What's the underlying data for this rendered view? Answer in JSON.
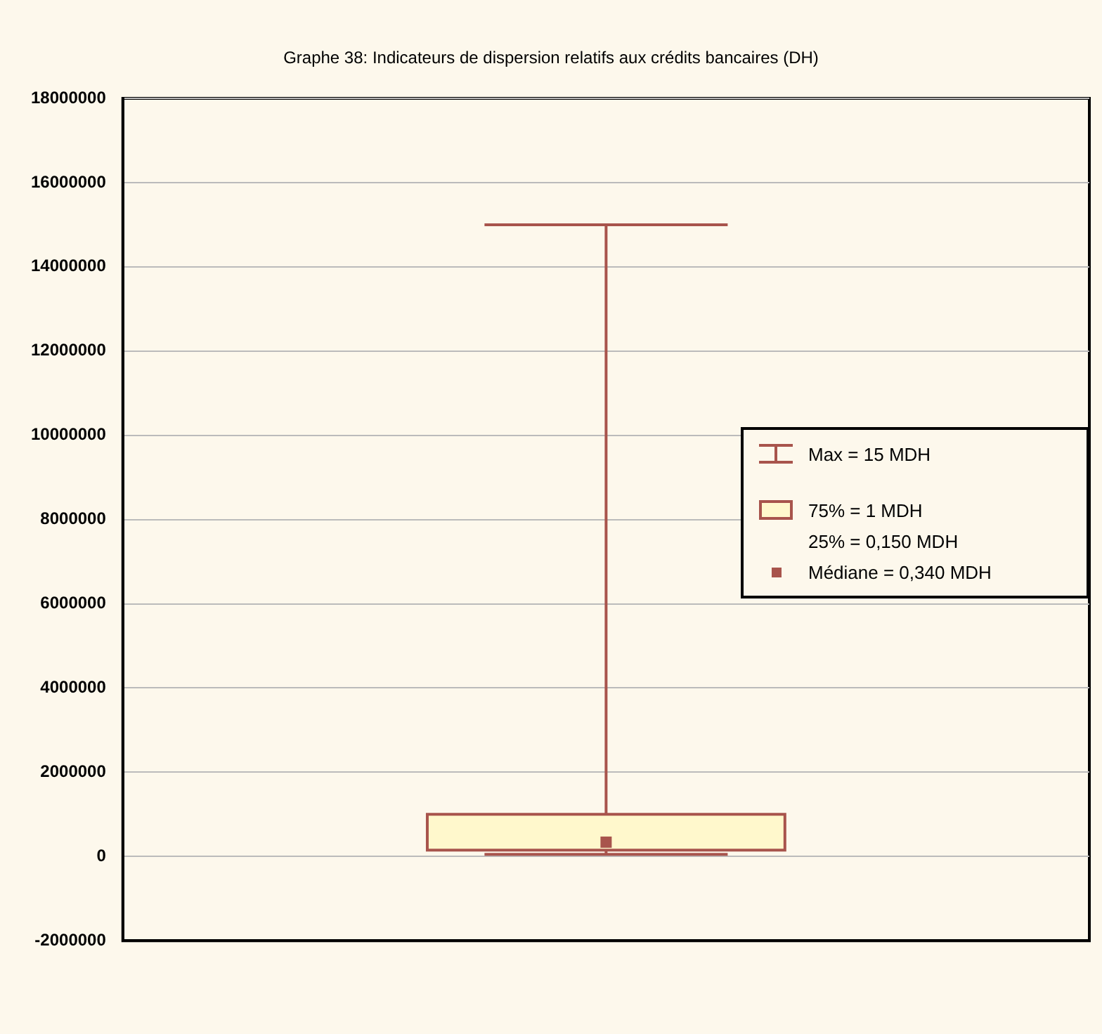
{
  "chart_data": {
    "type": "box",
    "title": "Graphe 38: Indicateurs de dispersion relatifs aux crédits bancaires (DH)",
    "categories": [
      null
    ],
    "boxes": [
      {
        "low": 50000,
        "q1": 150000,
        "median": 340000,
        "q3": 1000000,
        "high": 15000000
      }
    ],
    "color": "#fff8cc",
    "ylim": [
      -2000000,
      18000000
    ],
    "yticks": [
      -2000000,
      0,
      2000000,
      4000000,
      6000000,
      8000000,
      10000000,
      12000000,
      14000000,
      16000000,
      18000000
    ],
    "grid": "y",
    "annotations": [
      "Max = 15 MDH",
      "75% = 1 MDH",
      "25% = 0,150 MDH",
      "Médiane = 0,340 MDH"
    ]
  }
}
